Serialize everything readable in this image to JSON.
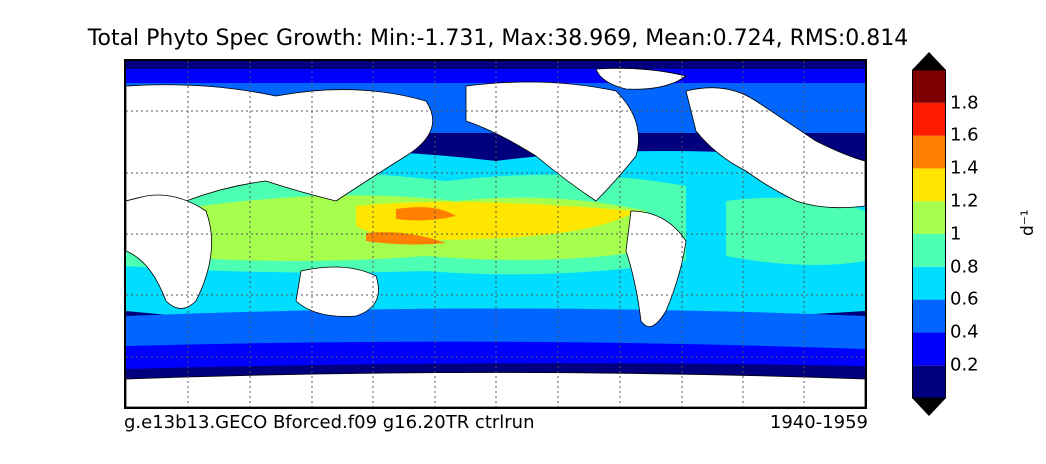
{
  "title": "Total Phyto Spec Growth: Min:-1.731, Max:38.969, Mean:0.724, RMS:0.814",
  "caption_left": "g.e13b13.GECO Bforced.f09 g16.20TR ctrlrun",
  "caption_right": "1940-1959",
  "colorbar": {
    "unit": "d⁻¹",
    "tick_labels": [
      "1.8",
      "1.6",
      "1.4",
      "1.2",
      "1",
      "0.8",
      "0.6",
      "0.4",
      "0.2"
    ],
    "levels": [
      0,
      0.2,
      0.4,
      0.6,
      0.8,
      1.0,
      1.2,
      1.4,
      1.6,
      1.8,
      2.0
    ],
    "colors": [
      "#00007f",
      "#0000ff",
      "#0066ff",
      "#00ddff",
      "#4dffb3",
      "#a6ff4d",
      "#ffe600",
      "#ff7f00",
      "#ff1a00",
      "#7f0000"
    ],
    "extend": "both",
    "orientation": "vertical"
  },
  "map": {
    "projection": "equirectangular",
    "land_color": "#ffffff",
    "gridlines": "dotted",
    "graticule": true
  }
}
